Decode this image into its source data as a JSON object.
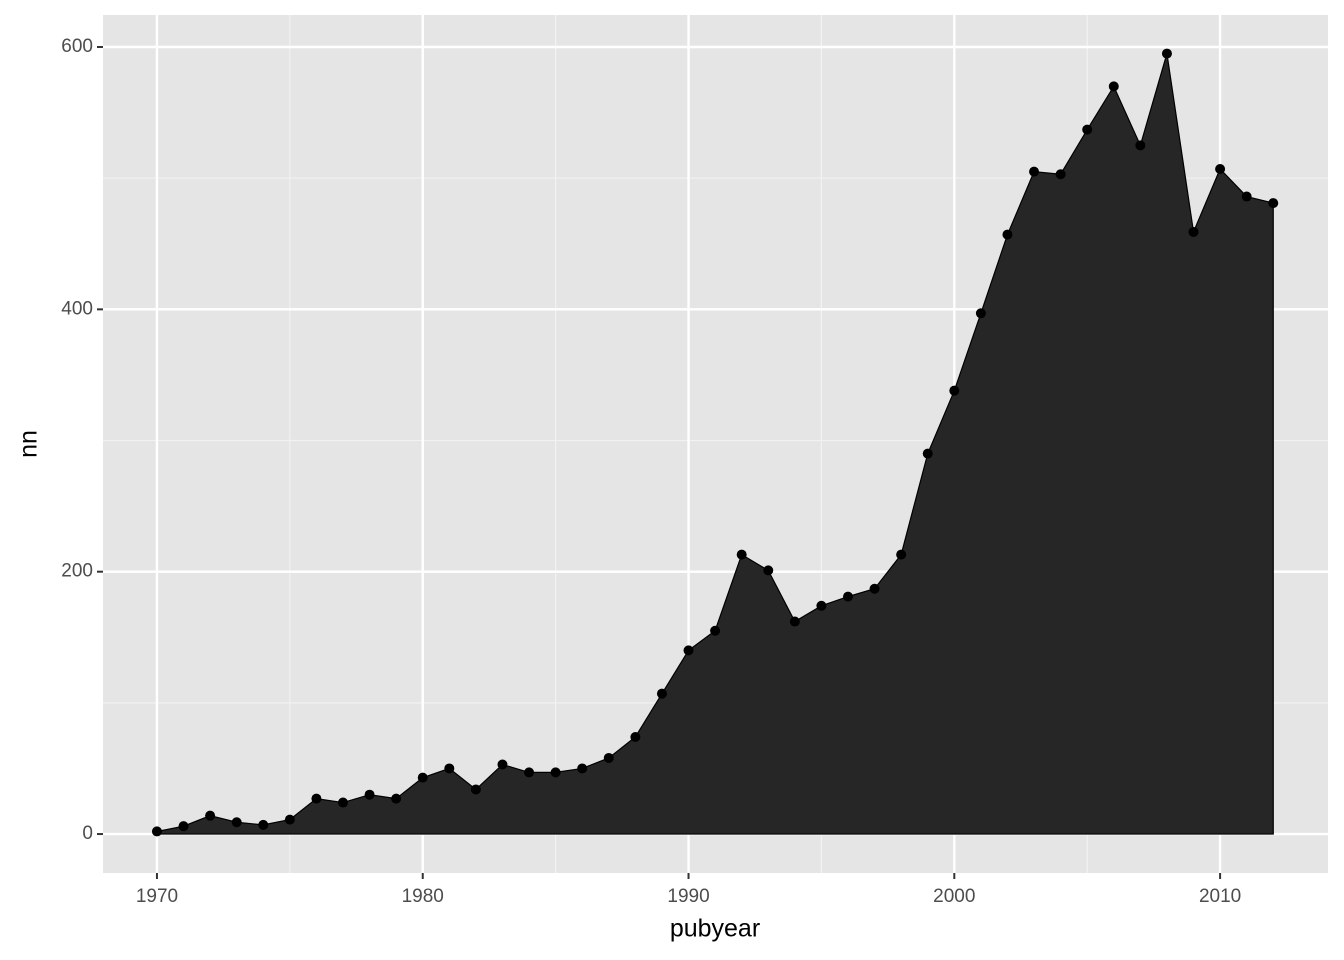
{
  "chart_data": {
    "type": "area",
    "x_label": "pubyear",
    "y_label": "nn",
    "x": [
      1970,
      1971,
      1972,
      1973,
      1974,
      1975,
      1976,
      1977,
      1978,
      1979,
      1980,
      1981,
      1982,
      1983,
      1984,
      1985,
      1986,
      1987,
      1988,
      1989,
      1990,
      1991,
      1992,
      1993,
      1994,
      1995,
      1996,
      1997,
      1998,
      1999,
      2000,
      2001,
      2002,
      2003,
      2004,
      2005,
      2006,
      2007,
      2008,
      2009,
      2010,
      2011,
      2012
    ],
    "values": [
      2,
      6,
      14,
      9,
      7,
      11,
      27,
      24,
      30,
      27,
      43,
      50,
      34,
      53,
      47,
      47,
      50,
      58,
      74,
      107,
      140,
      155,
      213,
      201,
      162,
      174,
      181,
      187,
      213,
      290,
      338,
      397,
      457,
      505,
      503,
      537,
      570,
      525,
      595,
      459,
      507,
      486,
      481
    ],
    "color": "#262626",
    "line_color": "#000000",
    "points": true,
    "xlim": [
      1967.97,
      2014.06
    ],
    "xticks": [
      1970,
      1980,
      1990,
      2000,
      2010
    ],
    "minor_xticks": [
      1975,
      1985,
      1995,
      2005
    ],
    "ylim": [
      -29.7,
      624.4
    ],
    "yticks": [
      0,
      200,
      400,
      600
    ],
    "minor_yticks": [
      100,
      300,
      500
    ],
    "grid": true
  }
}
